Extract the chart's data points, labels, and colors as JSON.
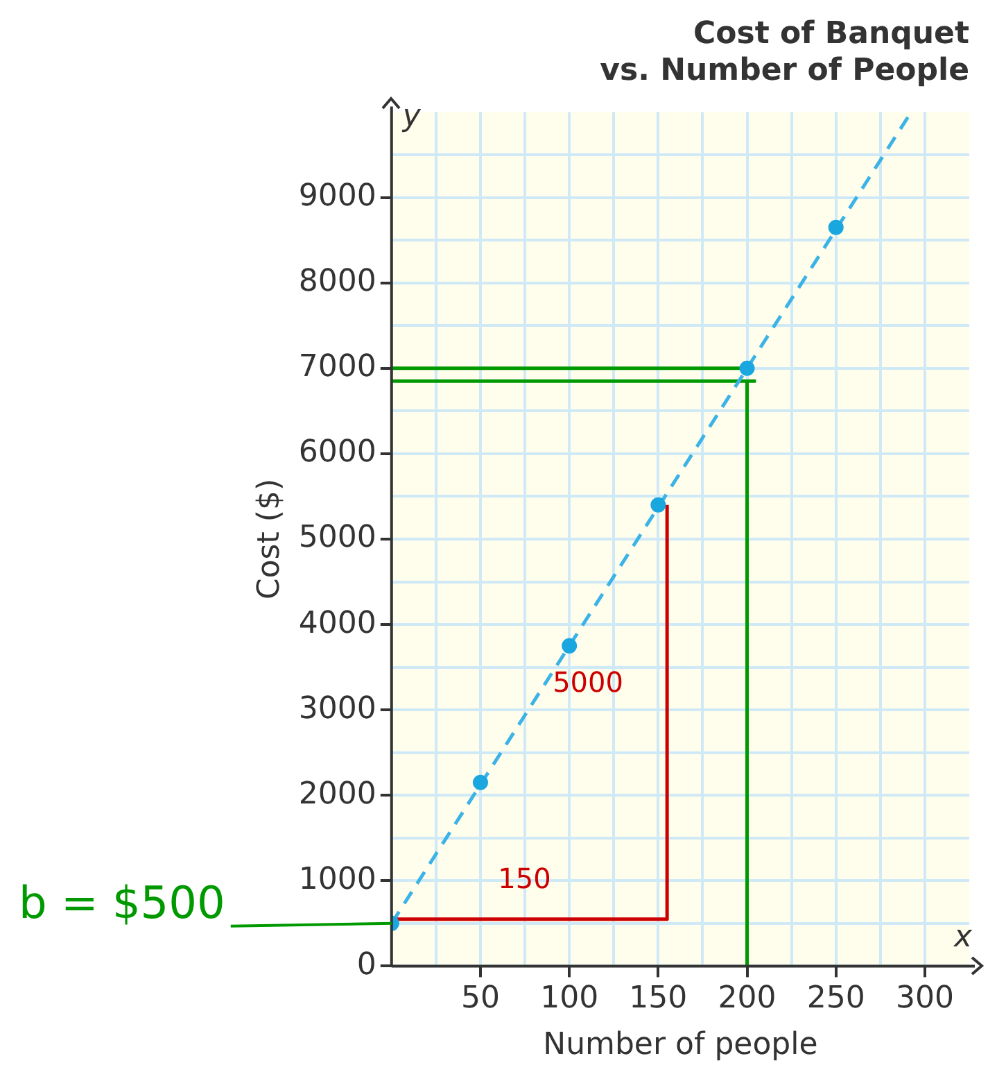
{
  "chart_data": {
    "type": "scatter",
    "title": "Cost of Banquet\nvs. Number of People",
    "xlabel": "Number of people",
    "ylabel": "Cost ($)",
    "series": [
      {
        "color": "#1aa7e0",
        "x": [
          0,
          50,
          100,
          150,
          200,
          250
        ],
        "values": [
          500,
          2150,
          3750,
          5400,
          7000,
          8650
        ],
        "marker": "circle"
      },
      {
        "type": "line",
        "color": "#3bb3e6",
        "x": [
          0,
          292
        ],
        "values": [
          500,
          9990
        ],
        "line_style": "dashed",
        "marker": "none"
      },
      {
        "type": "line",
        "color": "#cc0000",
        "x": [
          0,
          155,
          155
        ],
        "values": [
          550,
          550,
          5400
        ],
        "line_style": "solid",
        "marker": "none"
      },
      {
        "type": "line",
        "color": "#009900",
        "x": [
          0,
          200
        ],
        "values": [
          7000,
          7000
        ],
        "line_style": "solid",
        "marker": "none"
      },
      {
        "type": "line",
        "color": "#009900",
        "x": [
          0,
          205
        ],
        "values": [
          6850,
          6850
        ],
        "line_style": "solid",
        "marker": "none"
      },
      {
        "type": "line",
        "color": "#009900",
        "x": [
          200,
          200
        ],
        "values": [
          0,
          6850
        ],
        "line_style": "solid",
        "marker": "none"
      }
    ],
    "xlim": [
      0,
      325
    ],
    "xticks": [
      {
        "value": 25,
        "label": null
      },
      50,
      {
        "value": 75,
        "label": null
      },
      100,
      {
        "value": 125,
        "label": null
      },
      150,
      {
        "value": 175,
        "label": null
      },
      200,
      {
        "value": 225,
        "label": null
      },
      250,
      {
        "value": 275,
        "label": null
      },
      300
    ],
    "ylim": [
      0,
      10000
    ],
    "yticks": [
      0,
      {
        "value": 500,
        "label": null
      },
      1000,
      {
        "value": 1500,
        "label": null
      },
      2000,
      {
        "value": 2500,
        "label": null
      },
      3000,
      {
        "value": 3500,
        "label": null
      },
      4000,
      {
        "value": 4500,
        "label": null
      },
      5000,
      {
        "value": 5500,
        "label": null
      },
      6000,
      {
        "value": 6500,
        "label": null
      },
      7000,
      {
        "value": 7500,
        "label": null
      },
      8000,
      {
        "value": 8500,
        "label": null
      },
      9000,
      {
        "value": 9500,
        "label": null
      }
    ],
    "grid": true,
    "legend": false,
    "annotations": [
      "y",
      "x",
      "b = $500",
      "150",
      "5000"
    ]
  }
}
